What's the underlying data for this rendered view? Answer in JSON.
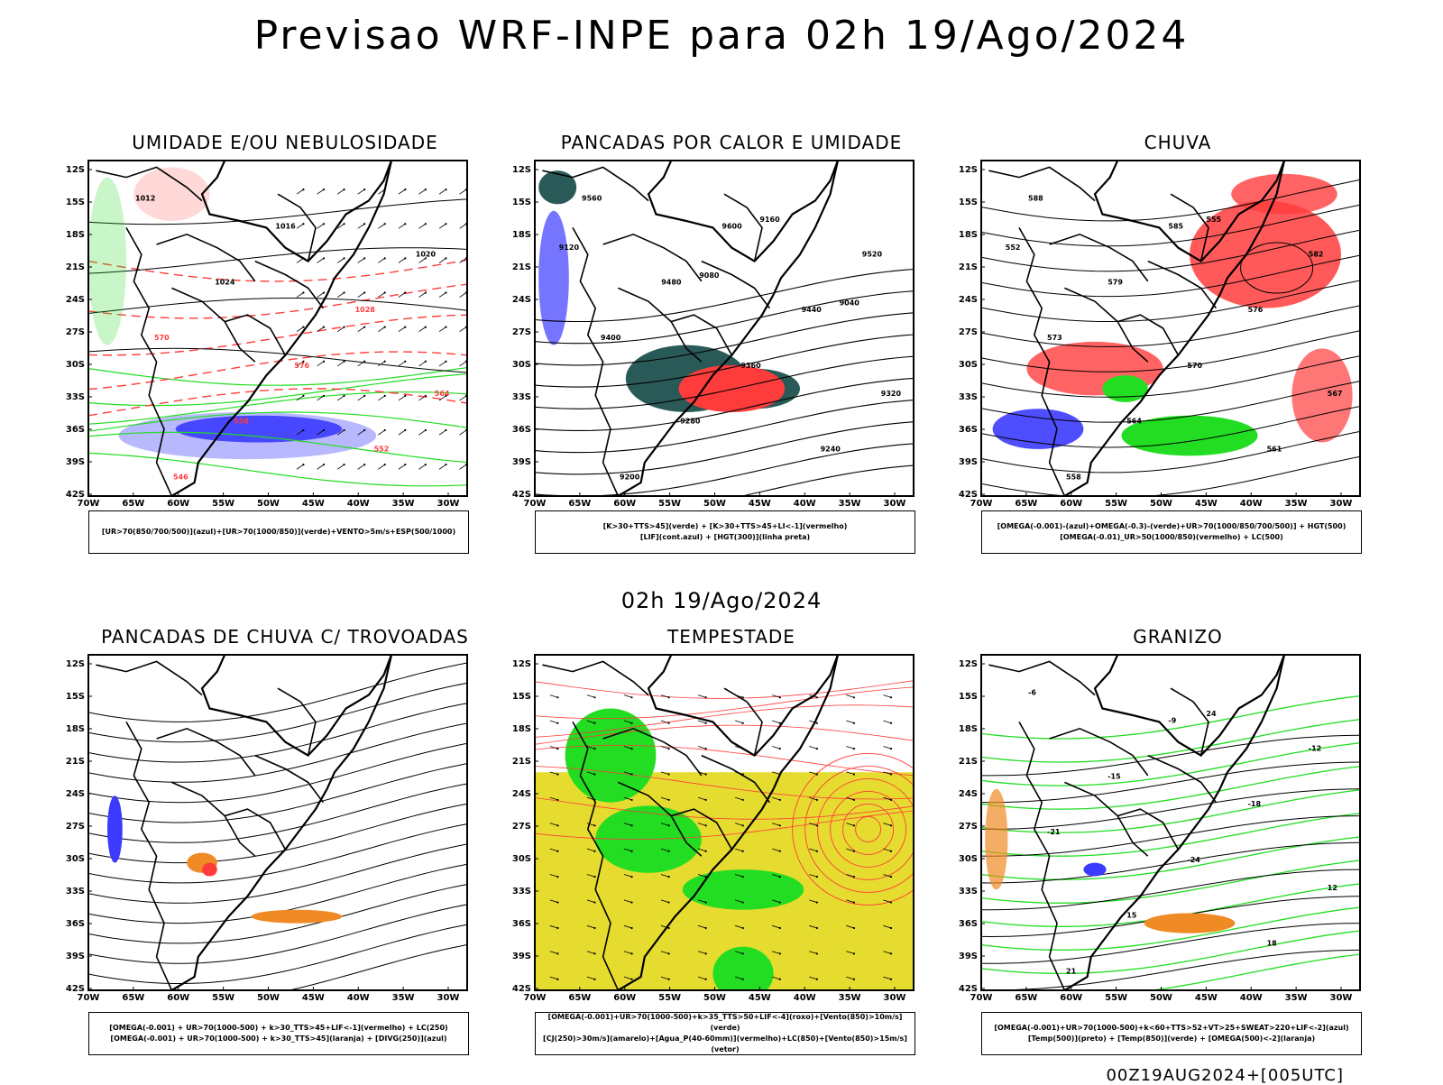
{
  "title": "Previsao WRF-INPE  para 02h 19/Ago/2024",
  "subtitle": "02h 19/Ago/2024",
  "footer": "00Z19AUG2024+[005UTC]",
  "lat_ticks": [
    "12S",
    "15S",
    "18S",
    "21S",
    "24S",
    "27S",
    "30S",
    "33S",
    "36S",
    "39S",
    "42S"
  ],
  "lon_ticks": [
    "70W",
    "65W",
    "60W",
    "55W",
    "50W",
    "45W",
    "40W",
    "35W",
    "30W"
  ],
  "colors": {
    "blue": "#3b3bff",
    "lightblue": "#b0b0ff",
    "green": "#22dd22",
    "red": "#ff3c3c",
    "orange": "#f08a24",
    "yellow": "#e6dc2f",
    "darkteal": "#2a5a57"
  },
  "panels": [
    {
      "title": "UMIDADE E/OU NEBULOSIDADE",
      "legend": [
        "[UR>70(850/700/500)](azul)+[UR>70(1000/850)](verde)+VENTO>5m/s+ESP(500/1000)"
      ],
      "contour_labels": [
        "1012",
        "1016",
        "1020",
        "1024",
        "1028",
        "570",
        "576",
        "564",
        "558",
        "552",
        "546"
      ]
    },
    {
      "title": "PANCADAS POR CALOR E UMIDADE",
      "legend": [
        "[K>30+TTS>45](verde) + [K>30+TTS>45+LI<-1](vermelho)",
        "[LIF](cont.azul) + [HGT(300)](linha preta)"
      ],
      "contour_labels": [
        "9560",
        "9600",
        "9520",
        "9480",
        "9440",
        "9400",
        "9360",
        "9320",
        "9280",
        "9240",
        "9200",
        "9160",
        "9120",
        "9080",
        "9040"
      ]
    },
    {
      "title": "CHUVA",
      "legend": [
        "[OMEGA(-0.001)-(azul)+OMEGA(-0.3)-(verde)+UR>70(1000/850/700/500)] + HGT(500)",
        "[OMEGA(-0.01)_UR>50(1000/850)(vermelho) + LC(500)"
      ],
      "contour_labels": [
        "588",
        "585",
        "582",
        "579",
        "576",
        "573",
        "570",
        "567",
        "564",
        "561",
        "558",
        "555",
        "552"
      ]
    },
    {
      "title": "PANCADAS DE CHUVA C/ TROVOADAS",
      "legend": [
        "[OMEGA(-0.001) + UR>70(1000-500) + k>30_TTS>45+LIF<-1](vermelho) + LC(250)",
        "[OMEGA(-0.001) + UR>70(1000-500) + k>30_TTS>45](laranja) + [DIVG(250)](azul)"
      ],
      "contour_labels": []
    },
    {
      "title": "TEMPESTADE",
      "legend": [
        "[OMEGA(-0.001)+UR>70(1000-500)+k>35_TTS>50+LIF<-4](roxo)+[Vento(850)>10m/s](verde)",
        "[CJ(250)>30m/s](amarelo)+[Agua_P(40-60mm)](vermelho)+LC(850)+[Vento(850)>15m/s](vetor)"
      ],
      "contour_labels": []
    },
    {
      "title": "GRANIZO",
      "legend": [
        "[OMEGA(-0.001)+UR>70(1000-500)+k<60+TTS>52+VT>25+SWEAT>220+LIF<-2](azul)",
        "[Temp(500)](preto) + [Temp(850)](verde) + [OMEGA(500)<-2](laranja)"
      ],
      "contour_labels": [
        "-6",
        "-9",
        "-12",
        "-15",
        "-18",
        "-21",
        "-24",
        "12",
        "15",
        "18",
        "21",
        "24"
      ]
    }
  ]
}
